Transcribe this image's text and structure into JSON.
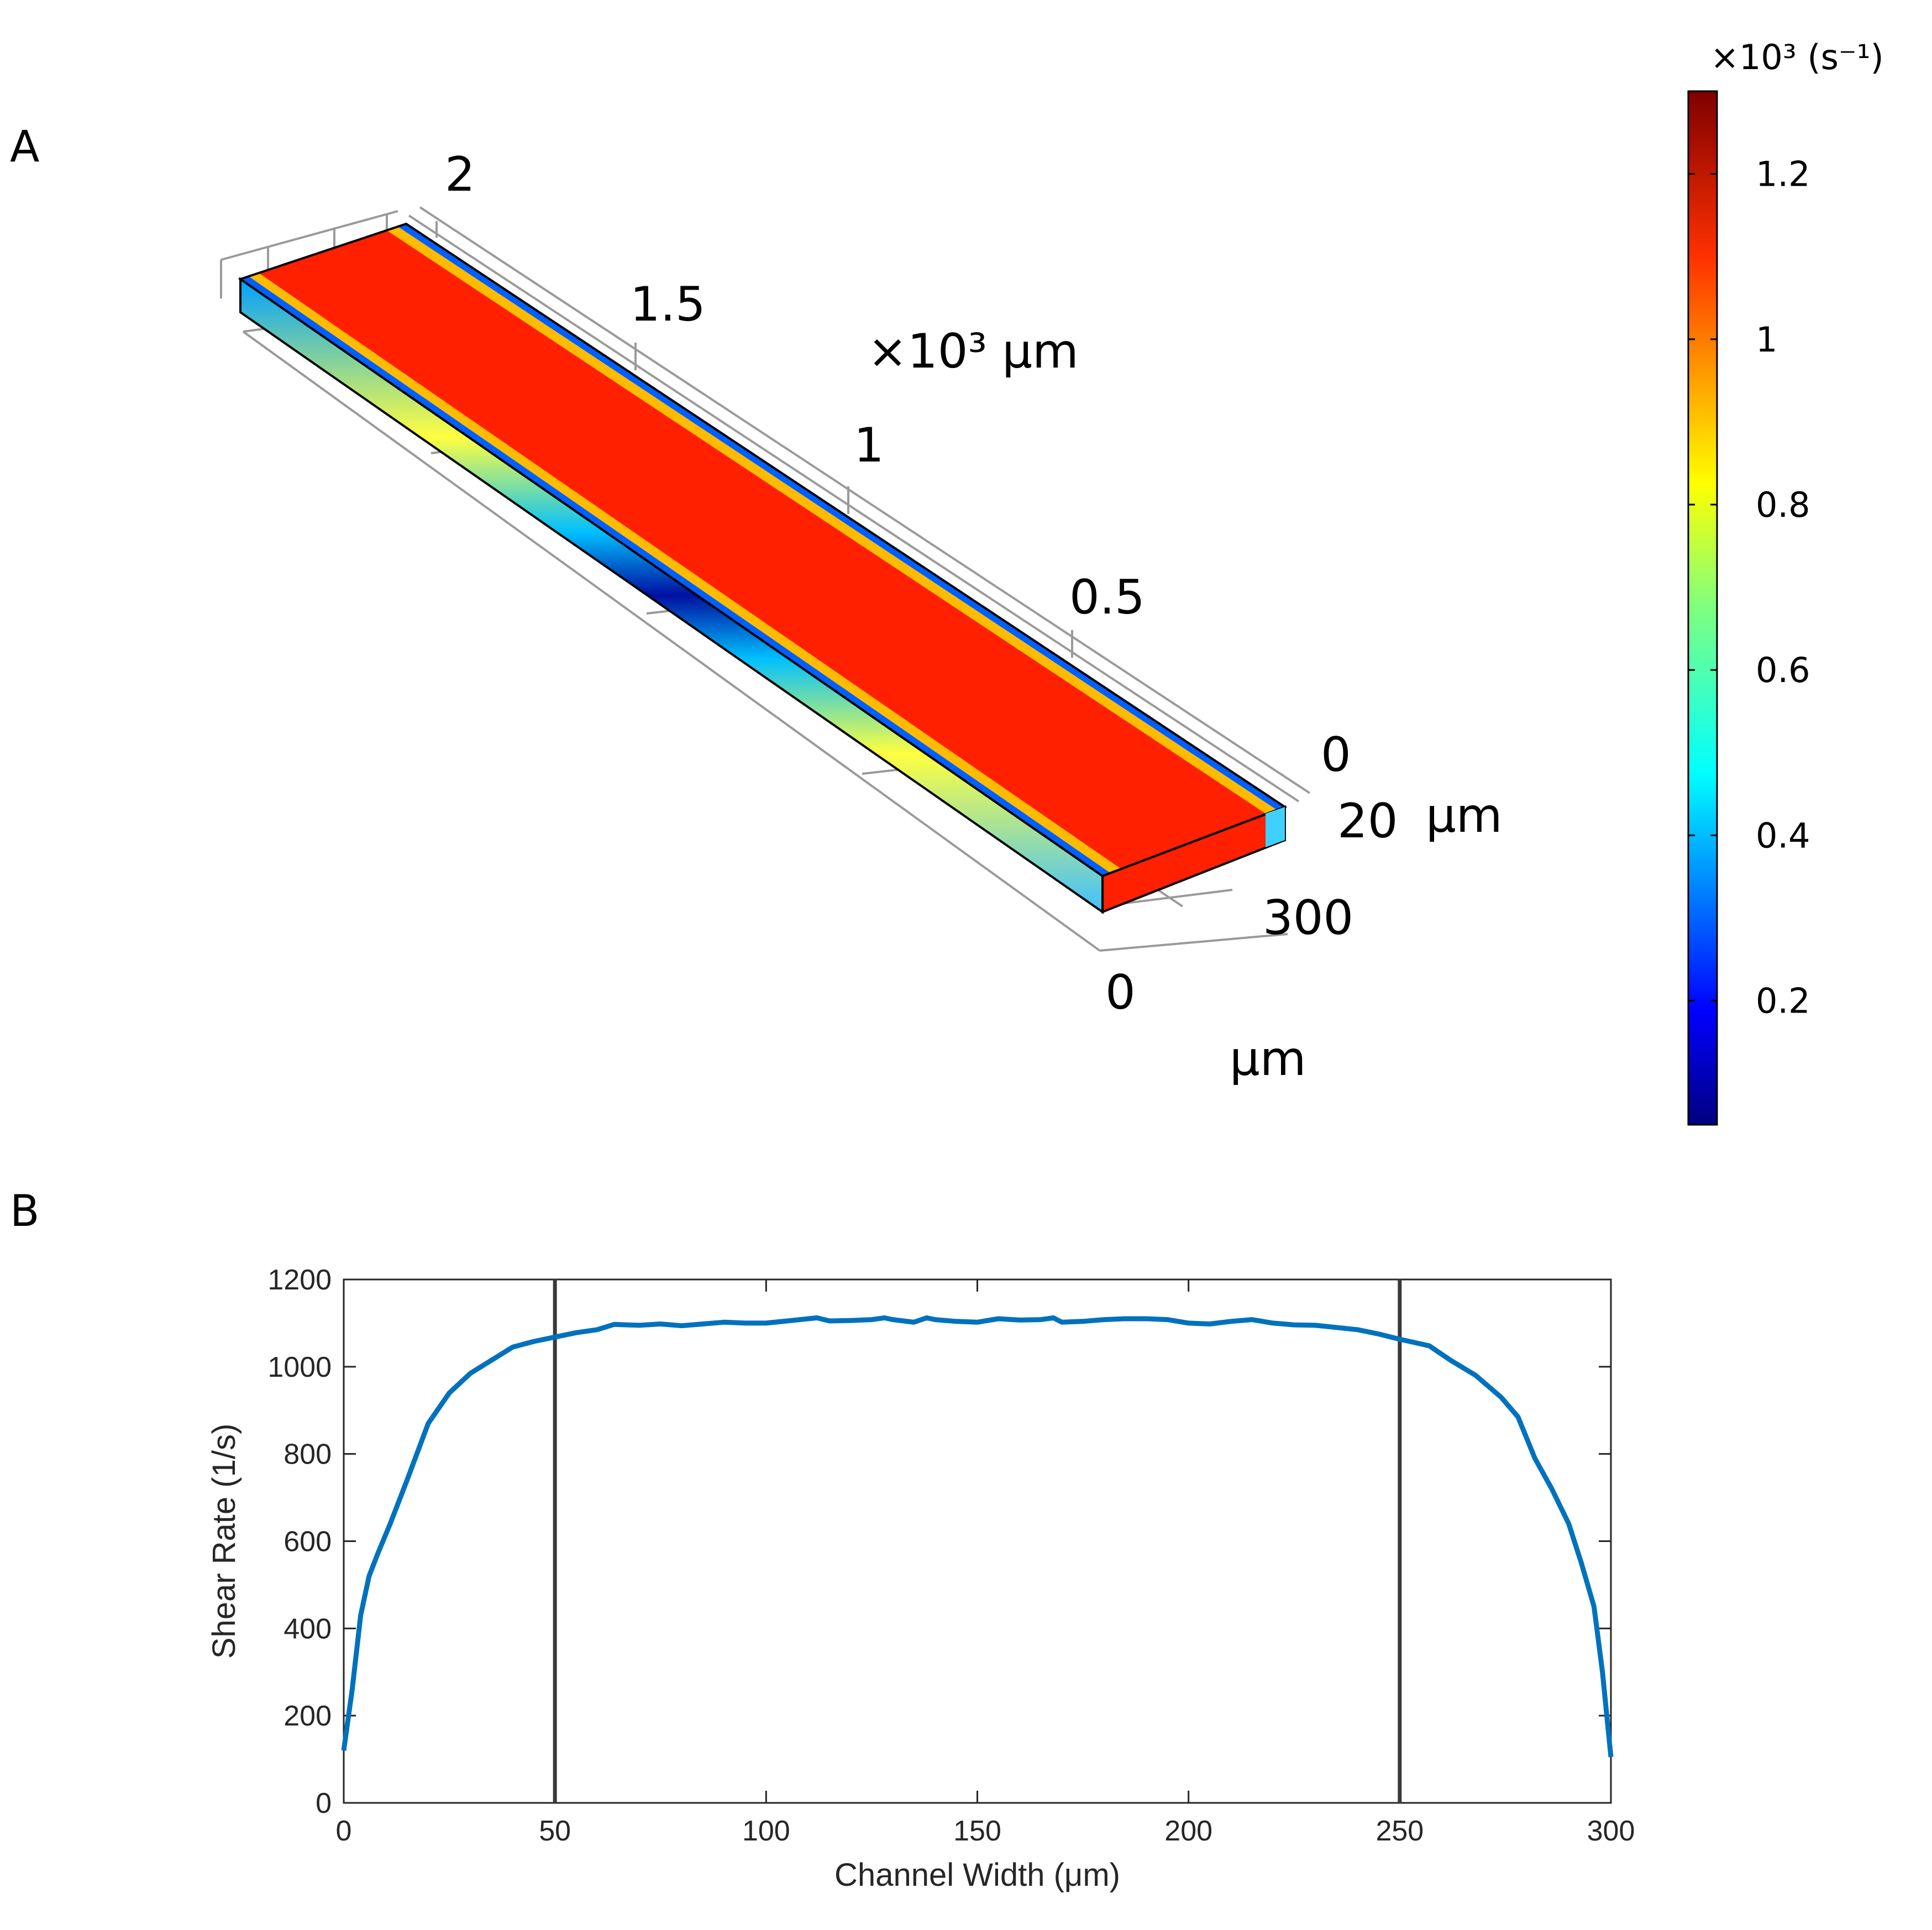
{
  "panels": {
    "a_label": "A",
    "b_label": "B"
  },
  "panel_a": {
    "type": "3d-surface",
    "description_values": {
      "length_axis_ticks": [
        "2",
        "1.5",
        "1",
        "0.5",
        "0"
      ],
      "length_axis_unit": "×10³ μm",
      "height_axis_tick": "20",
      "height_axis_unit": "μm",
      "width_axis_ticks": [
        "300",
        "0"
      ],
      "width_axis_unit": "μm"
    },
    "colorbar": {
      "title": "×10³ (s⁻¹)",
      "ticks": [
        "1.2",
        "1",
        "0.8",
        "0.6",
        "0.4",
        "0.2"
      ],
      "tick_values": [
        1.2,
        1.0,
        0.8,
        0.6,
        0.4,
        0.2
      ],
      "range": [
        0.05,
        1.3
      ],
      "colormap": "jet"
    }
  },
  "chart_data": [
    {
      "type": "line",
      "title": "",
      "xlabel": "Channel Width (μm)",
      "ylabel": "Shear Rate (1/s)",
      "xlim": [
        0,
        300
      ],
      "ylim": [
        0,
        1200
      ],
      "xticks": [
        0,
        50,
        100,
        150,
        200,
        250,
        300
      ],
      "yticks": [
        0,
        200,
        400,
        600,
        800,
        1000,
        1200
      ],
      "grid": false,
      "vertical_lines": [
        50,
        250
      ],
      "series": [
        {
          "name": "Shear Rate",
          "color": "#0072BD",
          "x": [
            0,
            2,
            4,
            6,
            8,
            11,
            15,
            20,
            25,
            30,
            35,
            40,
            45,
            50,
            55,
            60,
            64,
            70,
            75,
            80,
            85,
            90,
            95,
            100,
            105,
            110,
            112,
            115,
            120,
            125,
            128,
            130,
            135,
            138,
            140,
            145,
            150,
            155,
            160,
            165,
            168,
            170,
            175,
            180,
            185,
            190,
            195,
            200,
            205,
            210,
            215,
            220,
            225,
            230,
            235,
            240,
            245,
            250,
            257,
            262,
            268,
            274,
            278,
            282,
            286,
            290,
            293,
            296,
            298,
            300
          ],
          "y": [
            120,
            260,
            430,
            520,
            570,
            640,
            740,
            870,
            940,
            985,
            1015,
            1045,
            1058,
            1068,
            1078,
            1085,
            1097,
            1095,
            1098,
            1094,
            1098,
            1102,
            1100,
            1100,
            1105,
            1110,
            1112,
            1105,
            1106,
            1108,
            1112,
            1108,
            1102,
            1112,
            1108,
            1104,
            1102,
            1110,
            1107,
            1108,
            1112,
            1102,
            1104,
            1108,
            1110,
            1110,
            1108,
            1100,
            1098,
            1104,
            1108,
            1100,
            1096,
            1095,
            1090,
            1085,
            1075,
            1063,
            1048,
            1015,
            980,
            930,
            885,
            790,
            720,
            640,
            550,
            450,
            300,
            105
          ]
        }
      ]
    }
  ]
}
